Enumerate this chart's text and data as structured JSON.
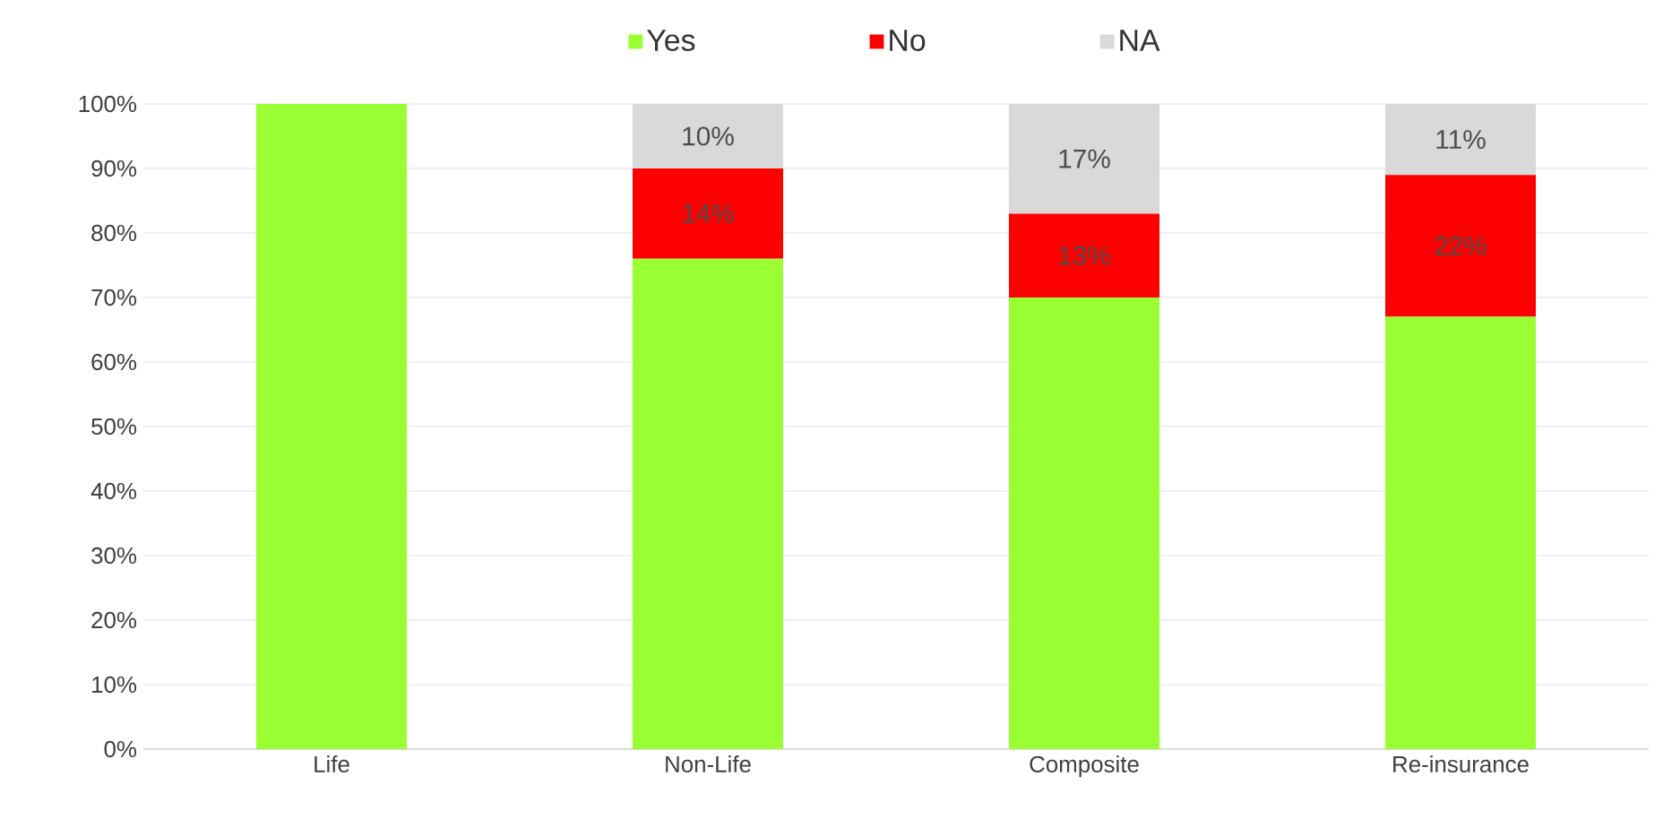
{
  "chart_data": {
    "type": "bar",
    "stacked": true,
    "categories": [
      "Life",
      "Non-Life",
      "Composite",
      "Re-insurance"
    ],
    "series": [
      {
        "name": "Yes",
        "color": "#99ff33",
        "values": [
          100,
          76,
          70,
          67
        ]
      },
      {
        "name": "No",
        "color": "#ff0000",
        "values": [
          0,
          14,
          13,
          22
        ],
        "value_labels": [
          null,
          "14%",
          "13%",
          "22%"
        ]
      },
      {
        "name": "NA",
        "color": "#d9d9d9",
        "values": [
          0,
          10,
          17,
          11
        ],
        "value_labels": [
          null,
          "10%",
          "17%",
          "11%"
        ]
      }
    ],
    "ylim": [
      0,
      100
    ],
    "yticks": [
      {
        "value": 0,
        "label": "0%"
      },
      {
        "value": 10,
        "label": "10%"
      },
      {
        "value": 20,
        "label": "20%"
      },
      {
        "value": 30,
        "label": "30%"
      },
      {
        "value": 40,
        "label": "40%"
      },
      {
        "value": 50,
        "label": "50%"
      },
      {
        "value": 60,
        "label": "60%"
      },
      {
        "value": 70,
        "label": "70%"
      },
      {
        "value": 80,
        "label": "80%"
      },
      {
        "value": 90,
        "label": "90%"
      },
      {
        "value": 100,
        "label": "100%"
      }
    ],
    "grid": "y",
    "legend": "top"
  }
}
